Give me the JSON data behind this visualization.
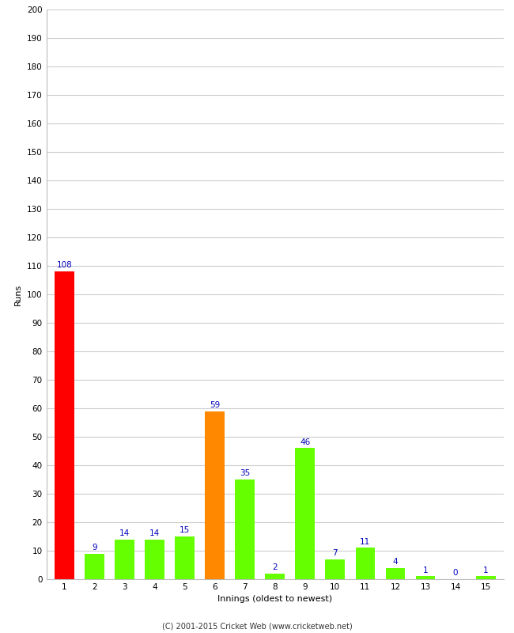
{
  "xlabel": "Innings (oldest to newest)",
  "ylabel": "Runs",
  "categories": [
    1,
    2,
    3,
    4,
    5,
    6,
    7,
    8,
    9,
    10,
    11,
    12,
    13,
    14,
    15
  ],
  "values": [
    108,
    9,
    14,
    14,
    15,
    59,
    35,
    2,
    46,
    7,
    11,
    4,
    1,
    0,
    1
  ],
  "bar_colors": [
    "#ff0000",
    "#66ff00",
    "#66ff00",
    "#66ff00",
    "#66ff00",
    "#ff8800",
    "#66ff00",
    "#66ff00",
    "#66ff00",
    "#66ff00",
    "#66ff00",
    "#66ff00",
    "#66ff00",
    "#66ff00",
    "#66ff00"
  ],
  "ylim": [
    0,
    200
  ],
  "yticks": [
    0,
    10,
    20,
    30,
    40,
    50,
    60,
    70,
    80,
    90,
    100,
    110,
    120,
    130,
    140,
    150,
    160,
    170,
    180,
    190,
    200
  ],
  "label_color": "#0000bb",
  "label_fontsize": 7.5,
  "axis_label_fontsize": 8,
  "tick_fontsize": 7.5,
  "footer": "(C) 2001-2015 Cricket Web (www.cricketweb.net)",
  "background_color": "#ffffff",
  "grid_color": "#cccccc",
  "bar_width": 0.65
}
